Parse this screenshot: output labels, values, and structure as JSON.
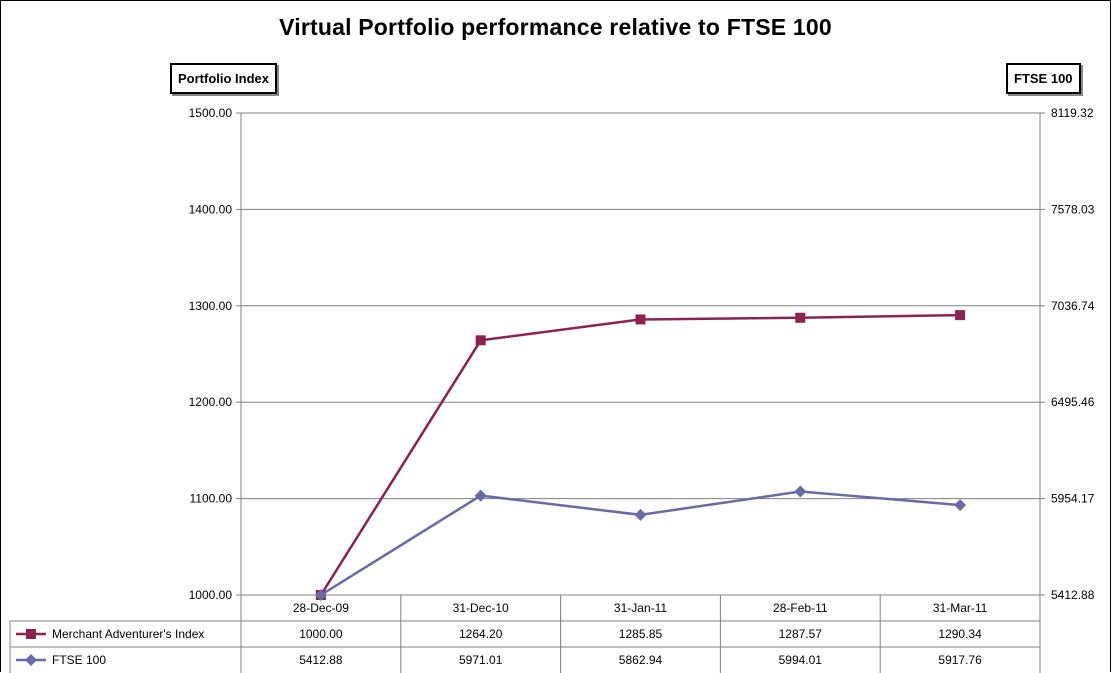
{
  "chart_data": {
    "type": "line",
    "title": "Virtual Portfolio performance relative to FTSE 100",
    "y_left_label": "Portfolio  Index",
    "y_right_label": "FTSE 100",
    "y_left_ticks": [
      "1500.00",
      "1400.00",
      "1300.00",
      "1200.00",
      "1100.00",
      "1000.00"
    ],
    "y_right_ticks": [
      "8119.32",
      "7578.03",
      "7036.74",
      "6495.46",
      "5954.17",
      "5412.88"
    ],
    "y_left_range": [
      1000,
      1500
    ],
    "y_right_range": [
      5412.88,
      8119.32
    ],
    "grid": true,
    "legend_placement": "data table below chart",
    "categories": [
      "28-Dec-09",
      "31-Dec-10",
      "31-Jan-11",
      "28-Feb-11",
      "31-Mar-11"
    ],
    "series": [
      {
        "name": "Merchant Adventurer's Index",
        "axis": "left",
        "color": "#8b2252",
        "marker": "square",
        "values": [
          1000.0,
          1264.2,
          1285.85,
          1287.57,
          1290.34
        ],
        "labels": [
          "1000.00",
          "1264.20",
          "1285.85",
          "1287.57",
          "1290.34"
        ]
      },
      {
        "name": "FTSE 100",
        "axis": "right",
        "color": "#6a6aa8",
        "marker": "diamond",
        "values": [
          5412.88,
          5971.01,
          5862.94,
          5994.01,
          5917.76
        ],
        "labels": [
          "5412.88",
          "5971.01",
          "5862.94",
          "5994.01",
          "5917.76"
        ]
      }
    ]
  }
}
